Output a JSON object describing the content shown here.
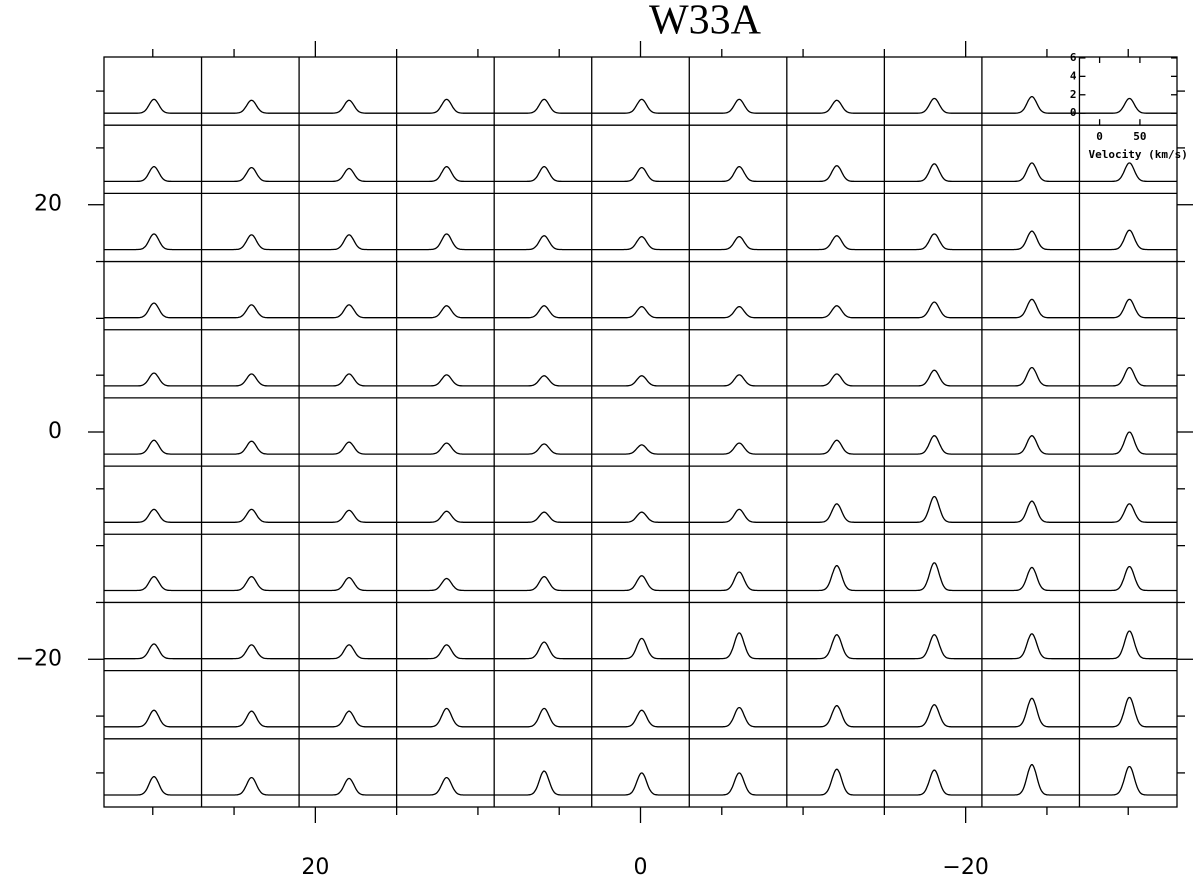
{
  "chart_data": {
    "type": "spectral_grid",
    "title": "W33A",
    "xlim": [
      33,
      -33
    ],
    "ylim": [
      -33,
      33
    ],
    "xticks": [
      20,
      0,
      {
        "value": -20,
        "label": "−20"
      }
    ],
    "yticks": [
      20,
      0,
      {
        "value": -20,
        "label": "−20"
      }
    ],
    "xminor": [
      30,
      25,
      15,
      10,
      5,
      -5,
      -10,
      -15,
      -25,
      -30
    ],
    "yminor": [
      30,
      25,
      15,
      10,
      5,
      -5,
      -10,
      -15,
      -25,
      -30
    ],
    "line_color": "#000000",
    "peak_velocity": 37,
    "line_sigma": 6,
    "inset": {
      "xlim": [
        -25,
        96
      ],
      "ylim": [
        -1.3,
        6.1
      ],
      "xticks": [
        0,
        50
      ],
      "yticks": [
        0,
        2,
        4,
        6
      ],
      "xlabel": "Velocity (km/s)"
    },
    "peaks": [
      [
        1.5,
        1.4,
        1.4,
        1.5,
        1.5,
        1.5,
        1.5,
        1.4,
        1.6,
        1.8,
        1.6
      ],
      [
        1.6,
        1.5,
        1.4,
        1.6,
        1.6,
        1.5,
        1.6,
        1.7,
        1.9,
        2.0,
        2.0
      ],
      [
        1.7,
        1.6,
        1.6,
        1.7,
        1.5,
        1.4,
        1.4,
        1.5,
        1.7,
        2.0,
        2.1
      ],
      [
        1.6,
        1.4,
        1.4,
        1.3,
        1.3,
        1.2,
        1.2,
        1.3,
        1.7,
        2.0,
        2.0
      ],
      [
        1.4,
        1.3,
        1.3,
        1.2,
        1.1,
        1.1,
        1.2,
        1.3,
        1.7,
        2.0,
        2.0
      ],
      [
        1.5,
        1.4,
        1.3,
        1.2,
        1.1,
        1.0,
        1.2,
        1.5,
        2.0,
        2.0,
        2.4
      ],
      [
        1.4,
        1.4,
        1.3,
        1.2,
        1.1,
        1.1,
        1.4,
        2.0,
        2.8,
        2.3,
        2.0
      ],
      [
        1.5,
        1.5,
        1.4,
        1.3,
        1.5,
        1.6,
        2.0,
        2.7,
        3.0,
        2.5,
        2.6
      ],
      [
        1.6,
        1.5,
        1.5,
        1.5,
        1.8,
        2.2,
        2.8,
        2.6,
        2.6,
        2.7,
        3.0
      ],
      [
        1.8,
        1.7,
        1.7,
        2.0,
        2.0,
        1.8,
        2.1,
        2.3,
        2.4,
        3.1,
        3.2
      ],
      [
        2.0,
        1.9,
        1.8,
        1.9,
        2.6,
        2.4,
        2.4,
        2.8,
        2.7,
        3.3,
        3.1
      ]
    ]
  }
}
